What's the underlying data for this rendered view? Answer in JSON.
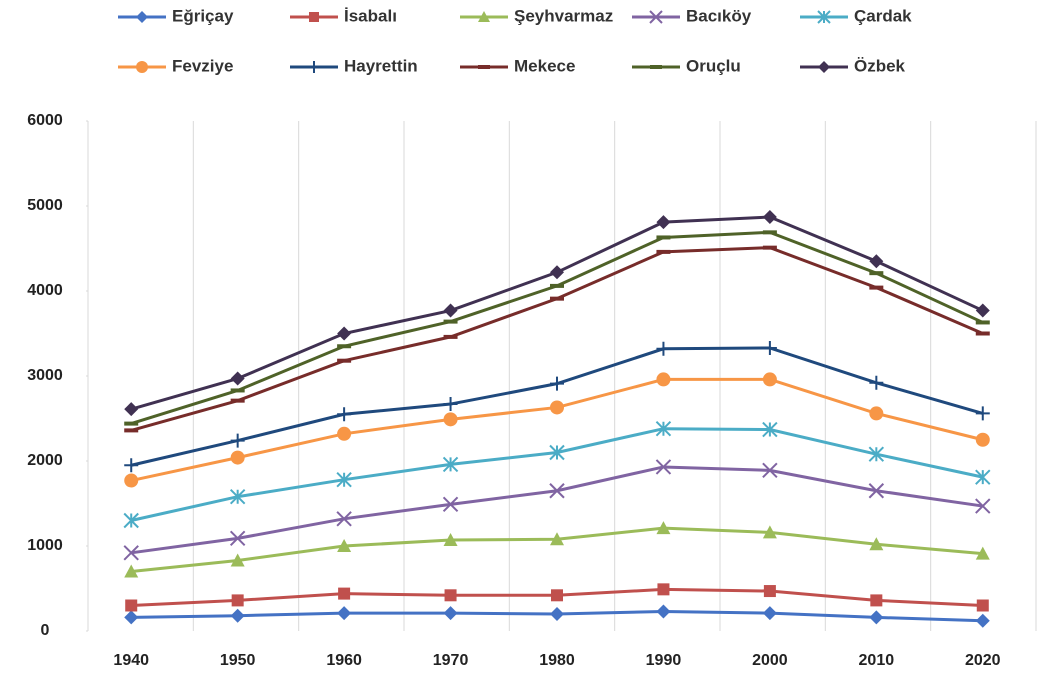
{
  "chart_data": {
    "type": "line",
    "stacked": true,
    "categories": [
      "1940",
      "1950",
      "1960",
      "1970",
      "1980",
      "1990",
      "2000",
      "2010",
      "2020"
    ],
    "series": [
      {
        "name": "Eğriçay",
        "color": "#4472c4",
        "marker": "diamond",
        "values": [
          160,
          180,
          210,
          210,
          200,
          230,
          210,
          160,
          120
        ]
      },
      {
        "name": "İsabalı",
        "color": "#c0504d",
        "marker": "square",
        "values": [
          140,
          180,
          230,
          210,
          220,
          260,
          260,
          200,
          180
        ]
      },
      {
        "name": "Şeyhvarmaz",
        "color": "#9bbb59",
        "marker": "triangle",
        "values": [
          400,
          470,
          560,
          650,
          660,
          720,
          690,
          660,
          610
        ]
      },
      {
        "name": "Bacıköy",
        "color": "#8064a2",
        "marker": "x",
        "values": [
          220,
          260,
          320,
          420,
          570,
          720,
          730,
          630,
          560
        ]
      },
      {
        "name": "Çardak",
        "color": "#4bacc6",
        "marker": "star",
        "values": [
          380,
          490,
          460,
          470,
          450,
          450,
          480,
          430,
          340
        ]
      },
      {
        "name": "Fevziye",
        "color": "#f79646",
        "marker": "circle",
        "values": [
          470,
          460,
          540,
          530,
          530,
          580,
          590,
          480,
          440
        ]
      },
      {
        "name": "Hayrettin",
        "color": "#1f497d",
        "marker": "plus",
        "values": [
          180,
          200,
          230,
          180,
          280,
          360,
          370,
          360,
          310
        ]
      },
      {
        "name": "Mekece",
        "color": "#772c2a",
        "marker": "dash",
        "values": [
          410,
          470,
          630,
          790,
          1000,
          1140,
          1180,
          1120,
          940
        ]
      },
      {
        "name": "Oruçlu",
        "color": "#4f6228",
        "marker": "dash",
        "values": [
          80,
          120,
          170,
          180,
          150,
          170,
          180,
          170,
          130
        ]
      },
      {
        "name": "Özbek",
        "color": "#403152",
        "marker": "diamond",
        "values": [
          170,
          140,
          150,
          130,
          160,
          180,
          180,
          140,
          140
        ]
      }
    ],
    "ylim": [
      0,
      6000
    ],
    "yticks": [
      0,
      1000,
      2000,
      3000,
      4000,
      5000,
      6000
    ],
    "grid": "x",
    "legend": "top"
  }
}
